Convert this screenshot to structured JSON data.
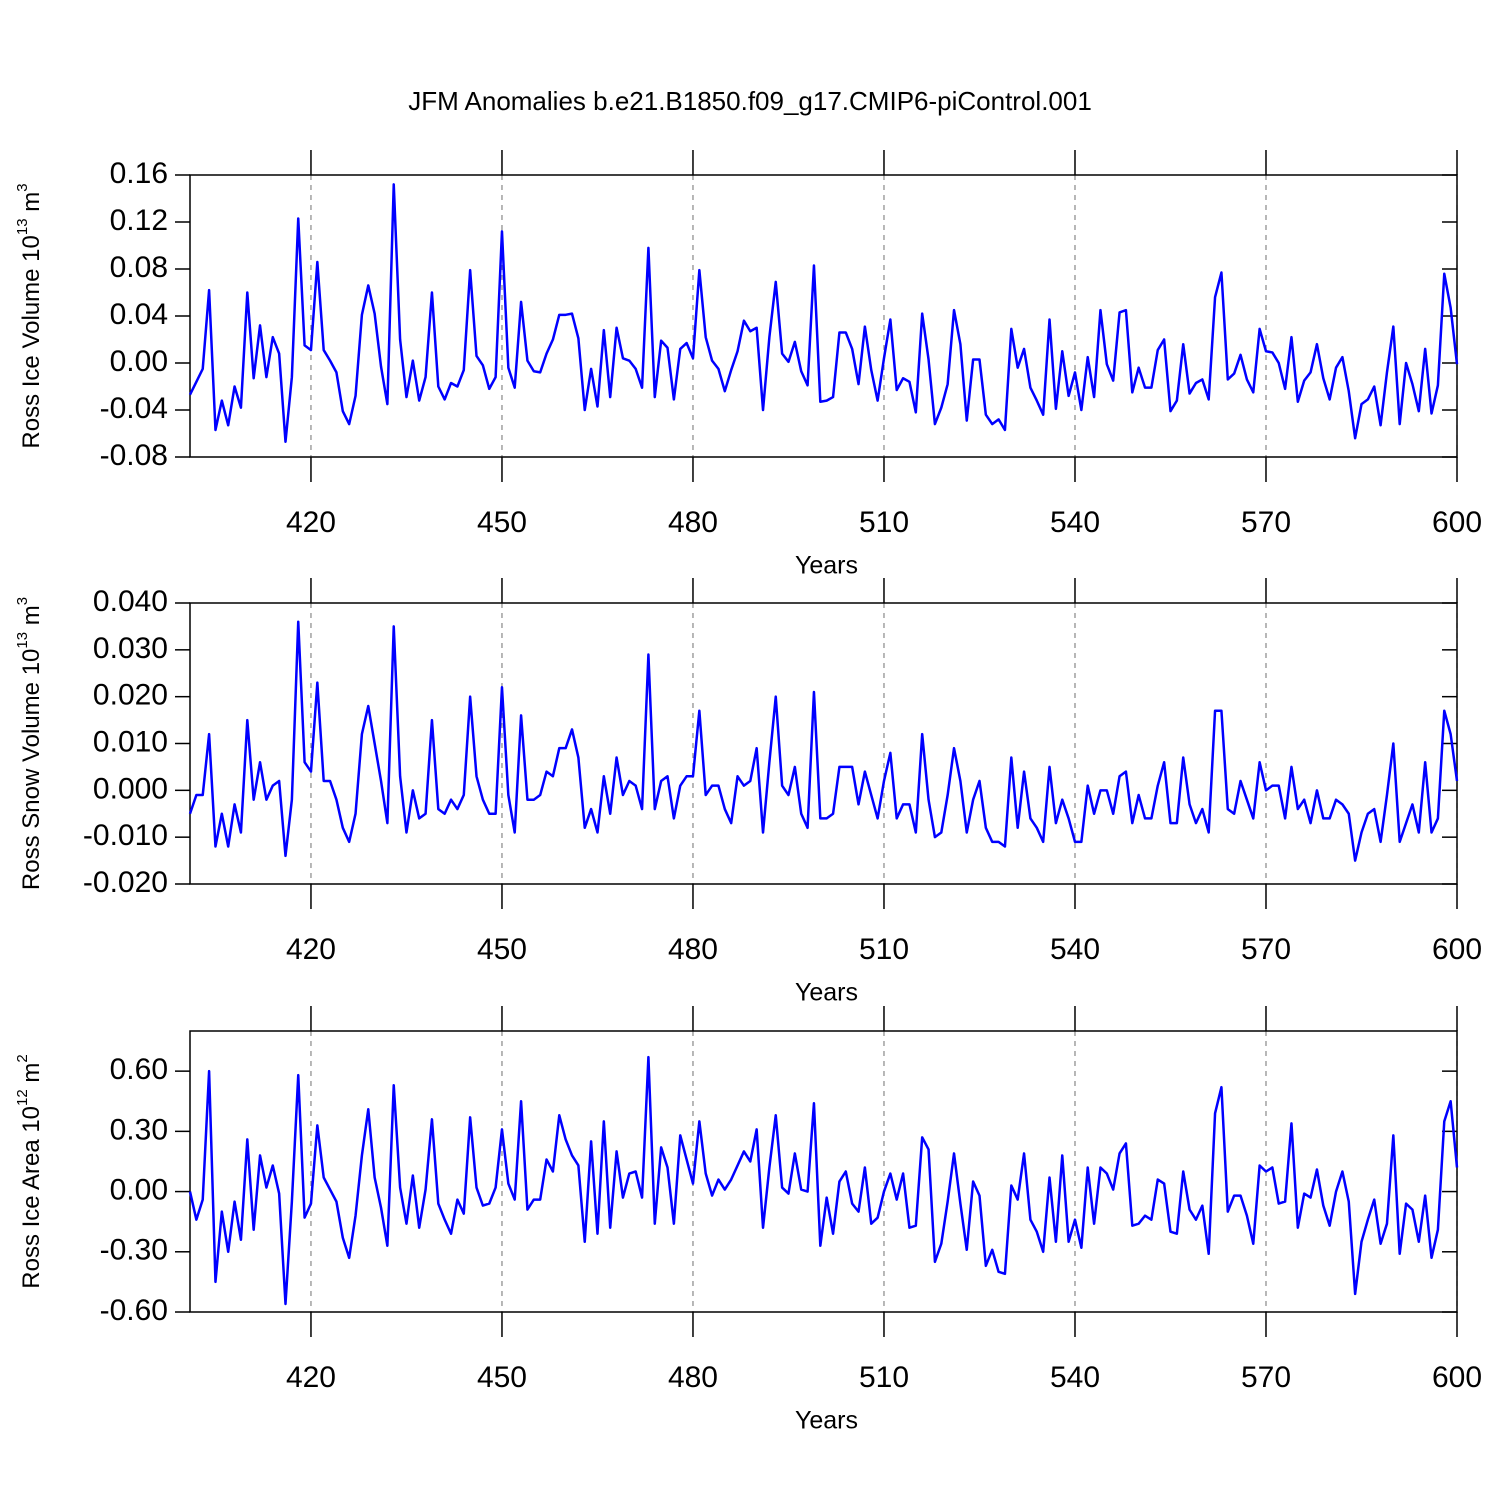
{
  "title": "JFM Anomalies b.e21.B1850.f09_g17.CMIP6-piControl.001",
  "chart_data": [
    {
      "type": "line",
      "xlabel": "Years",
      "ylabel": {
        "text": "Ross Ice Volume 10",
        "exponent": "13",
        "unit": " m",
        "unit_exponent": "3"
      },
      "xlim": [
        401,
        600
      ],
      "xticks": [
        420,
        450,
        480,
        510,
        540,
        570,
        600
      ],
      "ylim": [
        -0.08,
        0.16
      ],
      "yticks": [
        {
          "value": -0.08,
          "label": "-0.08"
        },
        {
          "value": -0.04,
          "label": "-0.04"
        },
        {
          "value": 0,
          "label": "0.00"
        },
        {
          "value": 0.04,
          "label": "0.04"
        },
        {
          "value": 0.08,
          "label": "0.08"
        },
        {
          "value": 0.12,
          "label": "0.12"
        },
        {
          "value": 0.16,
          "label": "0.16"
        }
      ],
      "grid": "x",
      "color": "#0000ff",
      "x": [
        401,
        402,
        403,
        404,
        405,
        406,
        407,
        408,
        409,
        410,
        411,
        412,
        413,
        414,
        415,
        416,
        417,
        418,
        419,
        420,
        421,
        422,
        423,
        424,
        425,
        426,
        427,
        428,
        429,
        430,
        431,
        432,
        433,
        434,
        435,
        436,
        437,
        438,
        439,
        440,
        441,
        442,
        443,
        444,
        445,
        446,
        447,
        448,
        449,
        450,
        451,
        452,
        453,
        454,
        455,
        456,
        457,
        458,
        459,
        460,
        461,
        462,
        463,
        464,
        465,
        466,
        467,
        468,
        469,
        470,
        471,
        472,
        473,
        474,
        475,
        476,
        477,
        478,
        479,
        480,
        481,
        482,
        483,
        484,
        485,
        486,
        487,
        488,
        489,
        490,
        491,
        492,
        493,
        494,
        495,
        496,
        497,
        498,
        499,
        500,
        501,
        502,
        503,
        504,
        505,
        506,
        507,
        508,
        509,
        510,
        511,
        512,
        513,
        514,
        515,
        516,
        517,
        518,
        519,
        520,
        521,
        522,
        523,
        524,
        525,
        526,
        527,
        528,
        529,
        530,
        531,
        532,
        533,
        534,
        535,
        536,
        537,
        538,
        539,
        540,
        541,
        542,
        543,
        544,
        545,
        546,
        547,
        548,
        549,
        550,
        551,
        552,
        553,
        554,
        555,
        556,
        557,
        558,
        559,
        560,
        561,
        562,
        563,
        564,
        565,
        566,
        567,
        568,
        569,
        570,
        571,
        572,
        573,
        574,
        575,
        576,
        577,
        578,
        579,
        580,
        581,
        582,
        583,
        584,
        585,
        586,
        587,
        588,
        589,
        590,
        591,
        592,
        593,
        594,
        595,
        596,
        597,
        598,
        599,
        600
      ],
      "values": [
        -0.027,
        -0.016,
        -0.005,
        0.062,
        -0.057,
        -0.032,
        -0.053,
        -0.02,
        -0.038,
        0.06,
        -0.013,
        0.032,
        -0.012,
        0.022,
        0.008,
        -0.067,
        -0.012,
        0.123,
        0.015,
        0.011,
        0.086,
        0.011,
        0.002,
        -0.008,
        -0.041,
        -0.052,
        -0.028,
        0.041,
        0.066,
        0.042,
        -0.003,
        -0.035,
        0.152,
        0.02,
        -0.029,
        0.002,
        -0.032,
        -0.012,
        0.06,
        -0.02,
        -0.031,
        -0.017,
        -0.02,
        -0.006,
        0.079,
        0.006,
        -0.002,
        -0.022,
        -0.012,
        0.112,
        -0.004,
        -0.021,
        0.052,
        0.002,
        -0.007,
        -0.008,
        0.008,
        0.02,
        0.041,
        0.041,
        0.042,
        0.021,
        -0.04,
        -0.005,
        -0.037,
        0.028,
        -0.029,
        0.03,
        0.004,
        0.002,
        -0.005,
        -0.021,
        0.098,
        -0.029,
        0.019,
        0.013,
        -0.031,
        0.012,
        0.017,
        0.004,
        0.079,
        0.022,
        0.002,
        -0.005,
        -0.024,
        -0.006,
        0.01,
        0.036,
        0.027,
        0.03,
        -0.04,
        0.022,
        0.069,
        0.008,
        0.001,
        0.018,
        -0.007,
        -0.019,
        0.083,
        -0.033,
        -0.032,
        -0.029,
        0.026,
        0.026,
        0.012,
        -0.018,
        0.031,
        -0.006,
        -0.032,
        0.004,
        0.037,
        -0.023,
        -0.013,
        -0.016,
        -0.042,
        0.042,
        0.003,
        -0.052,
        -0.038,
        -0.018,
        0.045,
        0.016,
        -0.049,
        0.003,
        0.003,
        -0.044,
        -0.052,
        -0.048,
        -0.057,
        0.029,
        -0.004,
        0.012,
        -0.021,
        -0.032,
        -0.044,
        0.037,
        -0.039,
        0.01,
        -0.028,
        -0.008,
        -0.04,
        0.005,
        -0.029,
        0.045,
        -0.001,
        -0.015,
        0.043,
        0.045,
        -0.025,
        -0.004,
        -0.021,
        -0.021,
        0.011,
        0.02,
        -0.041,
        -0.032,
        0.016,
        -0.026,
        -0.017,
        -0.014,
        -0.031,
        0.056,
        0.077,
        -0.014,
        -0.009,
        0.007,
        -0.014,
        -0.025,
        0.029,
        0.01,
        0.009,
        0,
        -0.022,
        0.022,
        -0.033,
        -0.015,
        -0.008,
        0.016,
        -0.013,
        -0.031,
        -0.004,
        0.005,
        -0.024,
        -0.064,
        -0.035,
        -0.031,
        -0.02,
        -0.053,
        -0.008,
        0.031,
        -0.052,
        0,
        -0.018,
        -0.041,
        0.012,
        -0.043,
        -0.019,
        0.076,
        0.047,
        -0.001
      ]
    },
    {
      "type": "line",
      "xlabel": "Years",
      "ylabel": {
        "text": "Ross Snow Volume 10",
        "exponent": "13",
        "unit": " m",
        "unit_exponent": "3"
      },
      "xlim": [
        401,
        600
      ],
      "xticks": [
        420,
        450,
        480,
        510,
        540,
        570,
        600
      ],
      "ylim": [
        -0.02,
        0.04
      ],
      "yticks": [
        {
          "value": -0.02,
          "label": "-0.020"
        },
        {
          "value": -0.01,
          "label": "-0.010"
        },
        {
          "value": 0,
          "label": "0.000"
        },
        {
          "value": 0.01,
          "label": "0.010"
        },
        {
          "value": 0.02,
          "label": "0.020"
        },
        {
          "value": 0.03,
          "label": "0.030"
        },
        {
          "value": 0.04,
          "label": "0.040"
        }
      ],
      "grid": "x",
      "color": "#0000ff",
      "x": [
        401,
        402,
        403,
        404,
        405,
        406,
        407,
        408,
        409,
        410,
        411,
        412,
        413,
        414,
        415,
        416,
        417,
        418,
        419,
        420,
        421,
        422,
        423,
        424,
        425,
        426,
        427,
        428,
        429,
        430,
        431,
        432,
        433,
        434,
        435,
        436,
        437,
        438,
        439,
        440,
        441,
        442,
        443,
        444,
        445,
        446,
        447,
        448,
        449,
        450,
        451,
        452,
        453,
        454,
        455,
        456,
        457,
        458,
        459,
        460,
        461,
        462,
        463,
        464,
        465,
        466,
        467,
        468,
        469,
        470,
        471,
        472,
        473,
        474,
        475,
        476,
        477,
        478,
        479,
        480,
        481,
        482,
        483,
        484,
        485,
        486,
        487,
        488,
        489,
        490,
        491,
        492,
        493,
        494,
        495,
        496,
        497,
        498,
        499,
        500,
        501,
        502,
        503,
        504,
        505,
        506,
        507,
        508,
        509,
        510,
        511,
        512,
        513,
        514,
        515,
        516,
        517,
        518,
        519,
        520,
        521,
        522,
        523,
        524,
        525,
        526,
        527,
        528,
        529,
        530,
        531,
        532,
        533,
        534,
        535,
        536,
        537,
        538,
        539,
        540,
        541,
        542,
        543,
        544,
        545,
        546,
        547,
        548,
        549,
        550,
        551,
        552,
        553,
        554,
        555,
        556,
        557,
        558,
        559,
        560,
        561,
        562,
        563,
        564,
        565,
        566,
        567,
        568,
        569,
        570,
        571,
        572,
        573,
        574,
        575,
        576,
        577,
        578,
        579,
        580,
        581,
        582,
        583,
        584,
        585,
        586,
        587,
        588,
        589,
        590,
        591,
        592,
        593,
        594,
        595,
        596,
        597,
        598,
        599,
        600
      ],
      "values": [
        -0.005,
        -0.001,
        -0.001,
        0.012,
        -0.012,
        -0.005,
        -0.012,
        -0.003,
        -0.009,
        0.015,
        -0.002,
        0.006,
        -0.002,
        0.001,
        0.002,
        -0.014,
        -0.002,
        0.036,
        0.006,
        0.004,
        0.023,
        0.002,
        0.002,
        -0.002,
        -0.008,
        -0.011,
        -0.005,
        0.012,
        0.018,
        0.01,
        0.002,
        -0.007,
        0.035,
        0.003,
        -0.009,
        0,
        -0.006,
        -0.005,
        0.015,
        -0.004,
        -0.005,
        -0.002,
        -0.004,
        -0.001,
        0.02,
        0.003,
        -0.002,
        -0.005,
        -0.005,
        0.022,
        -0.001,
        -0.009,
        0.016,
        -0.002,
        -0.002,
        -0.001,
        0.004,
        0.003,
        0.009,
        0.009,
        0.013,
        0.007,
        -0.008,
        -0.004,
        -0.009,
        0.003,
        -0.005,
        0.007,
        -0.001,
        0.002,
        0.001,
        -0.004,
        0.029,
        -0.004,
        0.002,
        0.003,
        -0.006,
        0.001,
        0.003,
        0.003,
        0.017,
        -0.001,
        0.001,
        0.001,
        -0.004,
        -0.007,
        0.003,
        0.001,
        0.002,
        0.009,
        -0.009,
        0.006,
        0.02,
        0.001,
        -0.001,
        0.005,
        -0.005,
        -0.008,
        0.021,
        -0.006,
        -0.006,
        -0.005,
        0.005,
        0.005,
        0.005,
        -0.003,
        0.004,
        -0.001,
        -0.006,
        0.002,
        0.008,
        -0.006,
        -0.003,
        -0.003,
        -0.009,
        0.012,
        -0.002,
        -0.01,
        -0.009,
        -0.001,
        0.009,
        0.002,
        -0.009,
        -0.002,
        0.002,
        -0.008,
        -0.011,
        -0.011,
        -0.012,
        0.007,
        -0.008,
        0.004,
        -0.006,
        -0.008,
        -0.011,
        0.005,
        -0.007,
        -0.002,
        -0.006,
        -0.011,
        -0.011,
        0.001,
        -0.005,
        0,
        0,
        -0.005,
        0.003,
        0.004,
        -0.007,
        -0.001,
        -0.006,
        -0.006,
        0.001,
        0.006,
        -0.007,
        -0.007,
        0.007,
        -0.003,
        -0.007,
        -0.004,
        -0.009,
        0.017,
        0.017,
        -0.004,
        -0.005,
        0.002,
        -0.002,
        -0.006,
        0.006,
        0,
        0.001,
        0.001,
        -0.006,
        0.005,
        -0.004,
        -0.002,
        -0.007,
        0,
        -0.006,
        -0.006,
        -0.002,
        -0.003,
        -0.005,
        -0.015,
        -0.009,
        -0.005,
        -0.004,
        -0.011,
        -0.001,
        0.01,
        -0.011,
        -0.007,
        -0.003,
        -0.009,
        0.006,
        -0.009,
        -0.006,
        0.017,
        0.012,
        0.002
      ]
    },
    {
      "type": "line",
      "xlabel": "Years",
      "ylabel": {
        "text": "Ross Ice Area 10",
        "exponent": "12",
        "unit": " m",
        "unit_exponent": "2"
      },
      "xlim": [
        401,
        600
      ],
      "xticks": [
        420,
        450,
        480,
        510,
        540,
        570,
        600
      ],
      "ylim": [
        -0.6,
        0.8
      ],
      "yticks": [
        {
          "value": -0.6,
          "label": "-0.60"
        },
        {
          "value": -0.3,
          "label": "-0.30"
        },
        {
          "value": 0,
          "label": "0.00"
        },
        {
          "value": 0.3,
          "label": "0.30"
        },
        {
          "value": 0.6,
          "label": "0.60"
        }
      ],
      "grid": "x",
      "color": "#0000ff",
      "x": [
        401,
        402,
        403,
        404,
        405,
        406,
        407,
        408,
        409,
        410,
        411,
        412,
        413,
        414,
        415,
        416,
        417,
        418,
        419,
        420,
        421,
        422,
        423,
        424,
        425,
        426,
        427,
        428,
        429,
        430,
        431,
        432,
        433,
        434,
        435,
        436,
        437,
        438,
        439,
        440,
        441,
        442,
        443,
        444,
        445,
        446,
        447,
        448,
        449,
        450,
        451,
        452,
        453,
        454,
        455,
        456,
        457,
        458,
        459,
        460,
        461,
        462,
        463,
        464,
        465,
        466,
        467,
        468,
        469,
        470,
        471,
        472,
        473,
        474,
        475,
        476,
        477,
        478,
        479,
        480,
        481,
        482,
        483,
        484,
        485,
        486,
        487,
        488,
        489,
        490,
        491,
        492,
        493,
        494,
        495,
        496,
        497,
        498,
        499,
        500,
        501,
        502,
        503,
        504,
        505,
        506,
        507,
        508,
        509,
        510,
        511,
        512,
        513,
        514,
        515,
        516,
        517,
        518,
        519,
        520,
        521,
        522,
        523,
        524,
        525,
        526,
        527,
        528,
        529,
        530,
        531,
        532,
        533,
        534,
        535,
        536,
        537,
        538,
        539,
        540,
        541,
        542,
        543,
        544,
        545,
        546,
        547,
        548,
        549,
        550,
        551,
        552,
        553,
        554,
        555,
        556,
        557,
        558,
        559,
        560,
        561,
        562,
        563,
        564,
        565,
        566,
        567,
        568,
        569,
        570,
        571,
        572,
        573,
        574,
        575,
        576,
        577,
        578,
        579,
        580,
        581,
        582,
        583,
        584,
        585,
        586,
        587,
        588,
        589,
        590,
        591,
        592,
        593,
        594,
        595,
        596,
        597,
        598,
        599,
        600
      ],
      "values": [
        0,
        -0.14,
        -0.04,
        0.6,
        -0.45,
        -0.1,
        -0.3,
        -0.05,
        -0.24,
        0.26,
        -0.19,
        0.18,
        0.02,
        0.13,
        -0.01,
        -0.56,
        -0.05,
        0.58,
        -0.13,
        -0.06,
        0.33,
        0.07,
        0.01,
        -0.05,
        -0.23,
        -0.33,
        -0.12,
        0.18,
        0.41,
        0.07,
        -0.08,
        -0.27,
        0.53,
        0.02,
        -0.16,
        0.08,
        -0.18,
        0.01,
        0.36,
        -0.06,
        -0.14,
        -0.21,
        -0.04,
        -0.11,
        0.37,
        0.02,
        -0.07,
        -0.06,
        0.02,
        0.31,
        0.04,
        -0.04,
        0.45,
        -0.09,
        -0.04,
        -0.04,
        0.16,
        0.1,
        0.38,
        0.26,
        0.18,
        0.13,
        -0.25,
        0.25,
        -0.21,
        0.35,
        -0.18,
        0.2,
        -0.03,
        0.09,
        0.1,
        -0.03,
        0.67,
        -0.16,
        0.22,
        0.12,
        -0.16,
        0.28,
        0.16,
        0.04,
        0.35,
        0.09,
        -0.02,
        0.06,
        0.01,
        0.06,
        0.13,
        0.2,
        0.15,
        0.31,
        -0.18,
        0.12,
        0.38,
        0.02,
        -0.01,
        0.19,
        0.01,
        0,
        0.44,
        -0.27,
        -0.03,
        -0.21,
        0.05,
        0.1,
        -0.06,
        -0.1,
        0.12,
        -0.16,
        -0.13,
        0,
        0.09,
        -0.04,
        0.09,
        -0.18,
        -0.17,
        0.27,
        0.21,
        -0.35,
        -0.26,
        -0.05,
        0.19,
        -0.06,
        -0.29,
        0.05,
        -0.02,
        -0.37,
        -0.29,
        -0.4,
        -0.41,
        0.03,
        -0.04,
        0.19,
        -0.14,
        -0.2,
        -0.3,
        0.07,
        -0.25,
        0.18,
        -0.25,
        -0.14,
        -0.28,
        0.12,
        -0.16,
        0.12,
        0.09,
        0.01,
        0.19,
        0.24,
        -0.17,
        -0.16,
        -0.12,
        -0.14,
        0.06,
        0.04,
        -0.2,
        -0.21,
        0.1,
        -0.09,
        -0.14,
        -0.07,
        -0.31,
        0.39,
        0.52,
        -0.1,
        -0.02,
        -0.02,
        -0.12,
        -0.26,
        0.13,
        0.1,
        0.12,
        -0.06,
        -0.05,
        0.34,
        -0.18,
        -0.01,
        -0.03,
        0.11,
        -0.07,
        -0.17,
        0,
        0.1,
        -0.05,
        -0.51,
        -0.25,
        -0.14,
        -0.04,
        -0.26,
        -0.16,
        0.28,
        -0.31,
        -0.06,
        -0.09,
        -0.25,
        -0.02,
        -0.33,
        -0.19,
        0.35,
        0.45,
        0.12
      ]
    }
  ]
}
